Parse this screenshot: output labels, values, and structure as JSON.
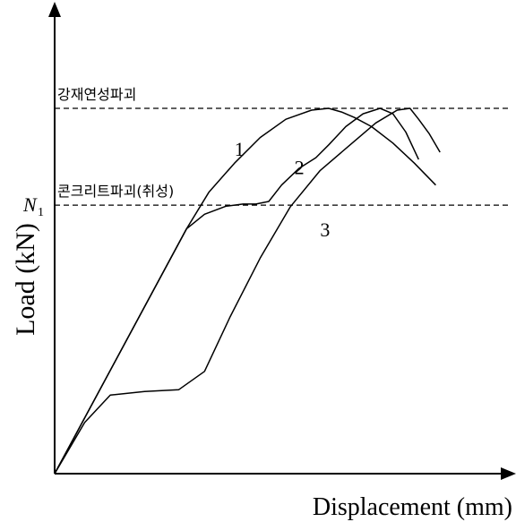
{
  "chart_data": {
    "type": "line",
    "xlabel": "Displacement (mm)",
    "ylabel": "Load (kN)",
    "x_ticks": [],
    "y_ticks": [],
    "grid": false,
    "reference_lines": [
      {
        "label": "강재연성파괴",
        "y": 1.0
      },
      {
        "label": "콘크리트파괴(취성)",
        "y": 0.735,
        "axis_label": "N",
        "axis_label_subscript": "1"
      }
    ],
    "series": [
      {
        "name": "1",
        "x": [
          0,
          0.308,
          0.36,
          0.42,
          0.48,
          0.54,
          0.6,
          0.64,
          0.67,
          0.7,
          0.74,
          0.79,
          0.84,
          0.89
        ],
        "y": [
          0,
          0.67,
          0.77,
          0.85,
          0.92,
          0.97,
          0.995,
          1.0,
          0.99,
          0.975,
          0.95,
          0.905,
          0.85,
          0.79
        ]
      },
      {
        "name": "2",
        "x": [
          0,
          0.308,
          0.35,
          0.4,
          0.44,
          0.47,
          0.5,
          0.53,
          0.57,
          0.61,
          0.64,
          0.68,
          0.72,
          0.76,
          0.79,
          0.82,
          0.85
        ],
        "y": [
          0,
          0.67,
          0.71,
          0.732,
          0.738,
          0.738,
          0.745,
          0.79,
          0.835,
          0.865,
          0.9,
          0.95,
          0.985,
          1.0,
          0.985,
          0.935,
          0.86
        ]
      },
      {
        "name": "3",
        "x": [
          0,
          0.07,
          0.13,
          0.21,
          0.29,
          0.35,
          0.41,
          0.48,
          0.55,
          0.62,
          0.69,
          0.75,
          0.8,
          0.83,
          0.85,
          0.875,
          0.9
        ],
        "y": [
          0,
          0.14,
          0.215,
          0.225,
          0.23,
          0.28,
          0.43,
          0.59,
          0.73,
          0.83,
          0.9,
          0.96,
          0.995,
          1.0,
          0.97,
          0.93,
          0.88
        ]
      }
    ],
    "curve_labels": [
      {
        "text": "1",
        "x": 0.42,
        "y": 0.87
      },
      {
        "text": "2",
        "x": 0.56,
        "y": 0.82
      },
      {
        "text": "3",
        "x": 0.62,
        "y": 0.65
      }
    ]
  }
}
